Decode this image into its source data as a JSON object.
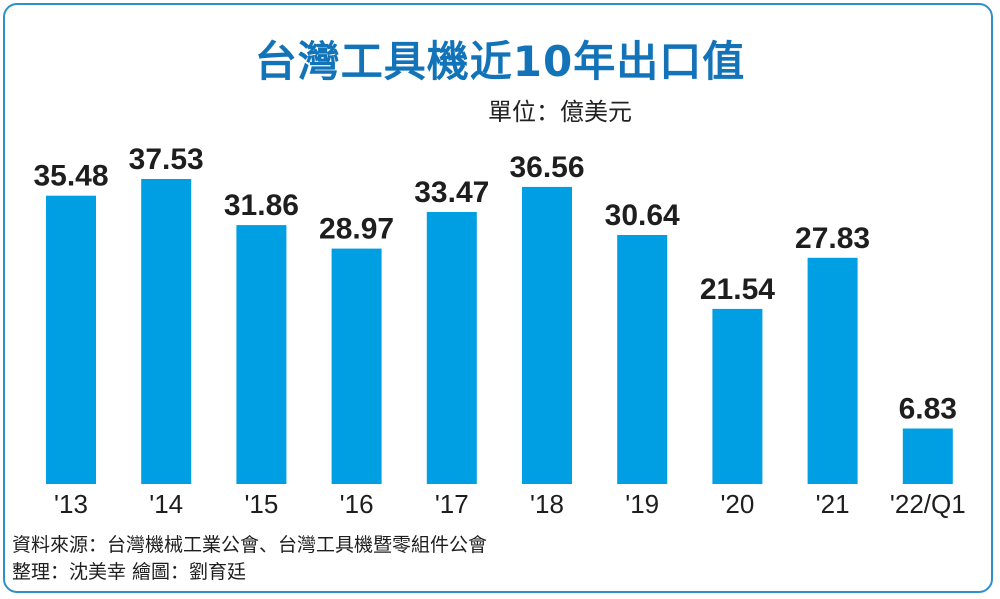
{
  "header": {
    "title": "台灣工具機近10年出口值",
    "unit": "單位：億美元"
  },
  "chart_data": {
    "type": "bar",
    "title": "台灣工具機近10年出口值",
    "ylabel": "單位：億美元",
    "categories": [
      "'13",
      "'14",
      "'15",
      "'16",
      "'17",
      "'18",
      "'19",
      "'20",
      "'21",
      "'22/Q1"
    ],
    "values": [
      35.48,
      37.53,
      31.86,
      28.97,
      33.47,
      36.56,
      30.64,
      21.54,
      27.83,
      6.83
    ],
    "value_labels": [
      "35.48",
      "37.53",
      "31.86",
      "28.97",
      "33.47",
      "36.56",
      "30.64",
      "21.54",
      "27.83",
      "6.83"
    ],
    "ylim": [
      0,
      40
    ],
    "grid": false,
    "bar_color": "#009fe3"
  },
  "footer": {
    "source": "資料來源：台灣機械工業公會、台灣工具機暨零組件公會",
    "credits": "整理：沈美幸  繪圖：劉育廷"
  },
  "colors": {
    "title": "#1273b9",
    "border": "#2f8fc8",
    "bar": "#009fe3"
  }
}
